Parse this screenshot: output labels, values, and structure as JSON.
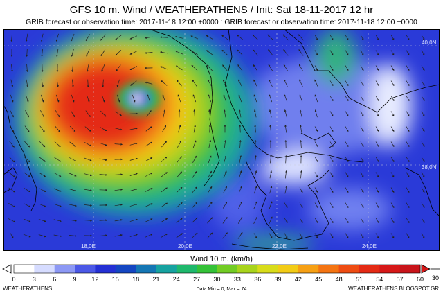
{
  "header": {
    "title": "GFS 10 m. Wind / WEATHERATHENS / Init: Sat 18-11-2017 12 hr",
    "subtitle": "GRIB forecast or observation time: 2017-11-18 12:00 +0000 : GRIB forecast or observation time: 2017-11-18 12:00 +0000"
  },
  "map": {
    "lon_labels": [
      "18,0E",
      "20,0E",
      "22,0E",
      "24,0E"
    ],
    "lat_labels": [
      "40,0N",
      "38,0N"
    ],
    "cyclone_center": {
      "lon": 18.9,
      "lat": 38.8
    },
    "colors": {
      "low": "#2a34d8",
      "mid": "#2fbf3b",
      "high": "#e8281e",
      "calm": "#ffffff"
    }
  },
  "colorbar": {
    "title": "Wind 10 m. (km/h)",
    "ticks": [
      "0",
      "3",
      "6",
      "9",
      "12",
      "15",
      "18",
      "21",
      "24",
      "27",
      "30",
      "33",
      "36",
      "39",
      "42",
      "45",
      "48",
      "51",
      "54",
      "57",
      "60"
    ],
    "overflow_label": "30",
    "colors": [
      "#ffffff",
      "#d6dcff",
      "#8c98f4",
      "#4b58e6",
      "#2430d4",
      "#1446c2",
      "#1476b4",
      "#16a2a0",
      "#1eb86c",
      "#34c238",
      "#72cc24",
      "#a8d41c",
      "#d8dc1a",
      "#f2cc16",
      "#f6a014",
      "#f47412",
      "#ee4c12",
      "#e42a14",
      "#d61818",
      "#c8141a"
    ]
  },
  "footer": {
    "left": "WEATHERATHENS",
    "middle": "Data Min = 0, Max = 74",
    "right": "WEATHERATHENS.BLOGSPOT.GR"
  }
}
